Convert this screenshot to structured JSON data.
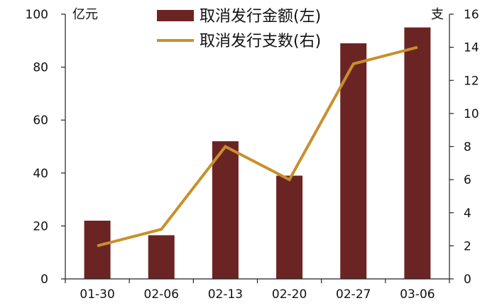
{
  "chart_data": {
    "type": "bar+line",
    "categories": [
      "01-30",
      "02-06",
      "02-13",
      "02-20",
      "02-27",
      "03-06"
    ],
    "series": [
      {
        "name": "取消发行金额(左)",
        "type": "bar",
        "axis": "left",
        "color": "#6b2424",
        "values": [
          22,
          16.5,
          52,
          39,
          89,
          95
        ]
      },
      {
        "name": "取消发行支数(右)",
        "type": "line",
        "axis": "right",
        "color": "#c8902c",
        "values": [
          2,
          3,
          8,
          6,
          13,
          14
        ]
      }
    ],
    "y_left": {
      "unit": "亿元",
      "ylim": [
        0,
        100
      ],
      "ticks": [
        0,
        20,
        40,
        60,
        80,
        100
      ]
    },
    "y_right": {
      "unit": "支",
      "ylim": [
        0,
        16
      ],
      "ticks": [
        0,
        2,
        4,
        6,
        8,
        10,
        12,
        14,
        16
      ]
    },
    "legend_position": "top-center",
    "grid": false
  }
}
